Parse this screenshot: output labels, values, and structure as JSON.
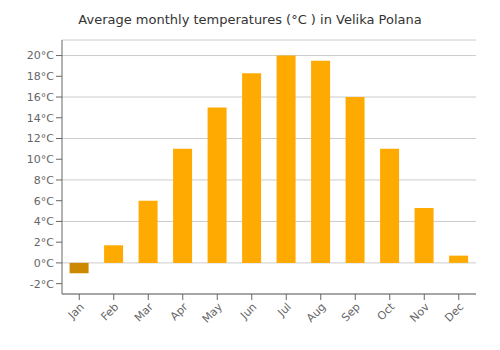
{
  "chart_data": {
    "type": "bar",
    "title": "Average monthly temperatures (°C ) in Velika Polana",
    "categories": [
      "Jan",
      "Feb",
      "Mar",
      "Apr",
      "May",
      "Jun",
      "Jul",
      "Aug",
      "Sep",
      "Oct",
      "Nov",
      "Dec"
    ],
    "values": [
      -1.0,
      1.7,
      6.0,
      11.0,
      15.0,
      18.3,
      20.0,
      19.5,
      16.0,
      11.0,
      5.3,
      0.7
    ],
    "colors": [
      "#CC8800",
      "#FFAA00",
      "#FFAA00",
      "#FFAA00",
      "#FFAA00",
      "#FFAA00",
      "#FFAA00",
      "#FFAA00",
      "#FFAA00",
      "#FFAA00",
      "#FFAA00",
      "#FFAA00"
    ],
    "ylim": [
      -3.0,
      21.5
    ],
    "yticks": [
      {
        "value": -2,
        "label": "-2°C"
      },
      {
        "value": 0,
        "label": "0°C"
      },
      {
        "value": 2,
        "label": "2°C"
      },
      {
        "value": 4,
        "label": "4°C"
      },
      {
        "value": 6,
        "label": "6°C"
      },
      {
        "value": 8,
        "label": "8°C"
      },
      {
        "value": 10,
        "label": "10°C"
      },
      {
        "value": 12,
        "label": "12°C"
      },
      {
        "value": 14,
        "label": "14°C"
      },
      {
        "value": 16,
        "label": "16°C"
      },
      {
        "value": 18,
        "label": "18°C"
      },
      {
        "value": 20,
        "label": "20°C"
      }
    ],
    "grid": true
  }
}
